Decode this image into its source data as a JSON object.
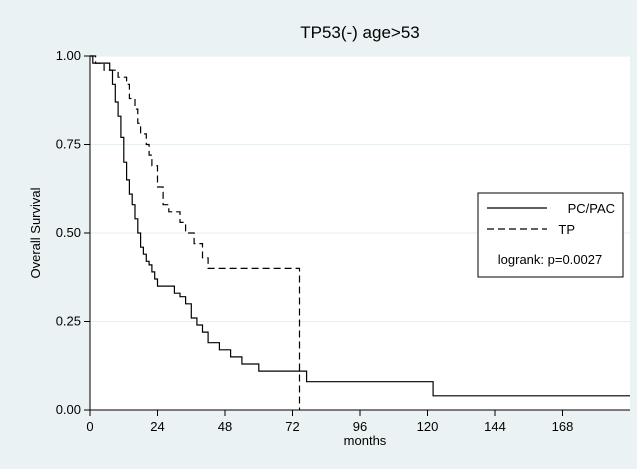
{
  "chart_data": {
    "type": "line",
    "title": "TP53(-) age>53",
    "xlabel": "months",
    "ylabel": "Overall Survival",
    "xlim": [
      0,
      192
    ],
    "ylim": [
      0,
      1
    ],
    "x_ticks": [
      0,
      24,
      48,
      72,
      96,
      120,
      144,
      168
    ],
    "y_ticks": [
      0,
      0.25,
      0.5,
      0.75,
      1
    ],
    "y_tick_labels": [
      "0.00",
      "0.25",
      "0.50",
      "0.75",
      "1.00"
    ],
    "grid": true,
    "legend_position": "right",
    "annotation": "logrank: p=0.0027",
    "series": [
      {
        "name": "PC/PAC",
        "style": "solid",
        "x": [
          0,
          1,
          7,
          8,
          9,
          10,
          11,
          12,
          13,
          14,
          15,
          16,
          17,
          18,
          19,
          20,
          21,
          22,
          23,
          24,
          26,
          30,
          32,
          34,
          36,
          38,
          40,
          42,
          46,
          50,
          54,
          60,
          76,
          77,
          122,
          192
        ],
        "y": [
          1.0,
          0.98,
          0.96,
          0.92,
          0.87,
          0.83,
          0.77,
          0.7,
          0.65,
          0.61,
          0.58,
          0.54,
          0.5,
          0.46,
          0.44,
          0.42,
          0.41,
          0.39,
          0.37,
          0.35,
          0.35,
          0.33,
          0.32,
          0.3,
          0.26,
          0.24,
          0.22,
          0.19,
          0.17,
          0.15,
          0.13,
          0.11,
          0.11,
          0.08,
          0.04,
          0.04
        ]
      },
      {
        "name": "TP",
        "style": "dashed",
        "x": [
          0,
          2,
          5,
          10,
          13,
          14,
          16,
          17,
          18,
          20,
          21,
          22,
          24,
          26,
          28,
          32,
          34,
          37,
          40,
          42,
          74.5
        ],
        "y": [
          1.0,
          0.98,
          0.96,
          0.94,
          0.92,
          0.88,
          0.85,
          0.81,
          0.78,
          0.75,
          0.72,
          0.69,
          0.63,
          0.58,
          0.56,
          0.53,
          0.5,
          0.47,
          0.43,
          0.4,
          0.0
        ]
      }
    ]
  }
}
